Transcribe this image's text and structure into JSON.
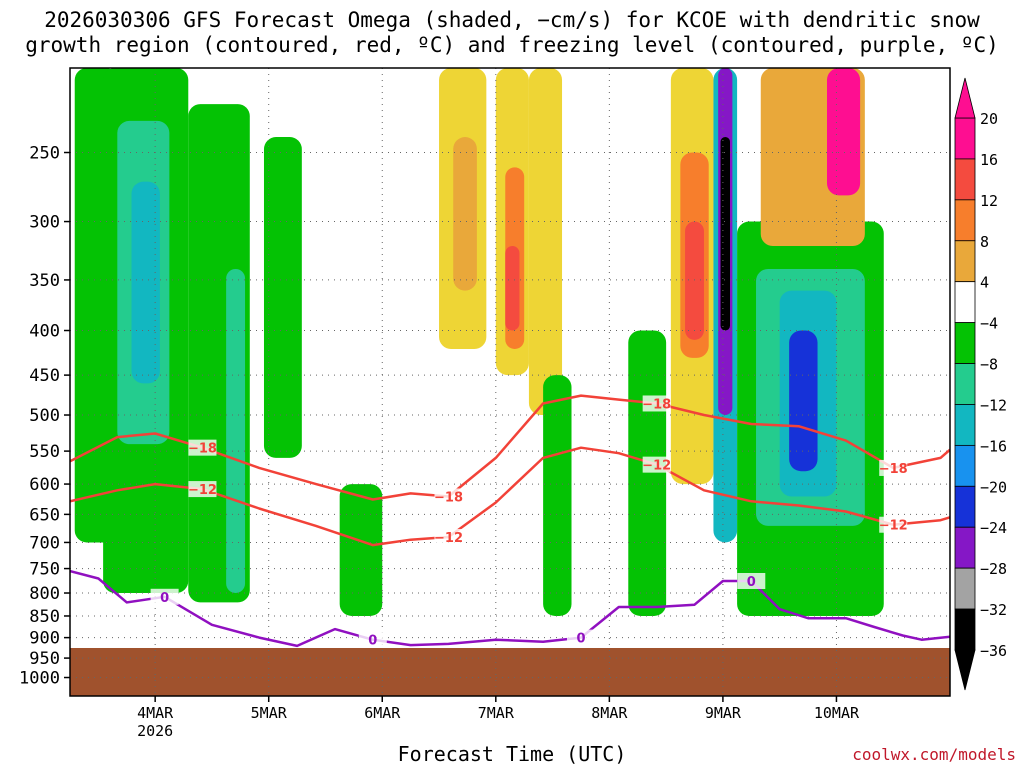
{
  "chart_data": {
    "type": "heatmap",
    "title_line1": "2026030306 GFS Forecast Omega (shaded, −cm/s) for KCOE with dendritic snow",
    "title_line2": "growth region (contoured, red, ºC) and freezing level (contoured, purple, ºC)",
    "xlabel": "Forecast Time (UTC)",
    "ylabel": "Pressure (hPa)",
    "credit": "coolwx.com/models",
    "x_range_hours": [
      0,
      186
    ],
    "x_ticks": [
      {
        "label": "4MAR",
        "sublabel": "2026",
        "hour": 18
      },
      {
        "label": "5MAR",
        "sublabel": "",
        "hour": 42
      },
      {
        "label": "6MAR",
        "sublabel": "",
        "hour": 66
      },
      {
        "label": "7MAR",
        "sublabel": "",
        "hour": 90
      },
      {
        "label": "8MAR",
        "sublabel": "",
        "hour": 114
      },
      {
        "label": "9MAR",
        "sublabel": "",
        "hour": 138
      },
      {
        "label": "10MAR",
        "sublabel": "",
        "hour": 162
      }
    ],
    "y_range_hpa": [
      200,
      1050
    ],
    "y_ticks": [
      250,
      300,
      350,
      400,
      450,
      500,
      550,
      600,
      650,
      700,
      750,
      800,
      850,
      900,
      950,
      1000
    ],
    "surface_pressure_hpa": 925,
    "colorbar": {
      "labels": [
        "20",
        "16",
        "12",
        "8",
        "4",
        "−4",
        "−8",
        "−12",
        "−16",
        "−20",
        "−24",
        "−28",
        "−32",
        "−36"
      ],
      "colors": [
        "#fe0e91",
        "#f44b3f",
        "#f77e2c",
        "#e9a83a",
        "#eed535",
        "#ffffff",
        "#04c204",
        "#24cc8e",
        "#12b7c1",
        "#1892ef",
        "#1632d8",
        "#8517c6",
        "#a3a3a3",
        "#000000"
      ]
    },
    "omega_regions": [
      {
        "hour_start": 1,
        "hour_end": 10,
        "p_top": 200,
        "p_bottom": 700,
        "value": -8
      },
      {
        "hour_start": 7,
        "hour_end": 25,
        "p_top": 200,
        "p_bottom": 800,
        "value": -8
      },
      {
        "hour_start": 10,
        "hour_end": 21,
        "p_top": 230,
        "p_bottom": 540,
        "value": -12
      },
      {
        "hour_start": 13,
        "hour_end": 19,
        "p_top": 270,
        "p_bottom": 460,
        "value": -16
      },
      {
        "hour_start": 25,
        "hour_end": 38,
        "p_top": 220,
        "p_bottom": 820,
        "value": -8
      },
      {
        "hour_start": 33,
        "hour_end": 37,
        "p_top": 340,
        "p_bottom": 800,
        "value": -12
      },
      {
        "hour_start": 41,
        "hour_end": 49,
        "p_top": 240,
        "p_bottom": 560,
        "value": -8
      },
      {
        "hour_start": 57,
        "hour_end": 66,
        "p_top": 600,
        "p_bottom": 850,
        "value": -8
      },
      {
        "hour_start": 78,
        "hour_end": 88,
        "p_top": 200,
        "p_bottom": 420,
        "value": 4
      },
      {
        "hour_start": 81,
        "hour_end": 86,
        "p_top": 240,
        "p_bottom": 360,
        "value": 8
      },
      {
        "hour_start": 90,
        "hour_end": 97,
        "p_top": 200,
        "p_bottom": 450,
        "value": 4
      },
      {
        "hour_start": 92,
        "hour_end": 96,
        "p_top": 260,
        "p_bottom": 420,
        "value": 12
      },
      {
        "hour_start": 92,
        "hour_end": 95,
        "p_top": 320,
        "p_bottom": 400,
        "value": 16
      },
      {
        "hour_start": 97,
        "hour_end": 104,
        "p_top": 200,
        "p_bottom": 500,
        "value": 4
      },
      {
        "hour_start": 100,
        "hour_end": 106,
        "p_top": 450,
        "p_bottom": 850,
        "value": -8
      },
      {
        "hour_start": 118,
        "hour_end": 126,
        "p_top": 400,
        "p_bottom": 850,
        "value": -8
      },
      {
        "hour_start": 127,
        "hour_end": 136,
        "p_top": 200,
        "p_bottom": 600,
        "value": 4
      },
      {
        "hour_start": 129,
        "hour_end": 135,
        "p_top": 250,
        "p_bottom": 430,
        "value": 12
      },
      {
        "hour_start": 130,
        "hour_end": 134,
        "p_top": 300,
        "p_bottom": 410,
        "value": 16
      },
      {
        "hour_start": 136,
        "hour_end": 141,
        "p_top": 200,
        "p_bottom": 700,
        "value": -16
      },
      {
        "hour_start": 137,
        "hour_end": 140,
        "p_top": 200,
        "p_bottom": 500,
        "value": -28
      },
      {
        "hour_start": 137.5,
        "hour_end": 139.5,
        "p_top": 240,
        "p_bottom": 400,
        "value": -36
      },
      {
        "hour_start": 141,
        "hour_end": 172,
        "p_top": 300,
        "p_bottom": 850,
        "value": -8
      },
      {
        "hour_start": 145,
        "hour_end": 168,
        "p_top": 340,
        "p_bottom": 670,
        "value": -12
      },
      {
        "hour_start": 150,
        "hour_end": 162,
        "p_top": 360,
        "p_bottom": 620,
        "value": -16
      },
      {
        "hour_start": 152,
        "hour_end": 158,
        "p_top": 400,
        "p_bottom": 580,
        "value": -24
      },
      {
        "hour_start": 146,
        "hour_end": 168,
        "p_top": 200,
        "p_bottom": 320,
        "value": 8
      },
      {
        "hour_start": 160,
        "hour_end": 167,
        "p_top": 200,
        "p_bottom": 280,
        "value": 20
      }
    ],
    "contours": [
      {
        "name": "-12C isotherm",
        "color": "#f24238",
        "label": "−12",
        "hours": [
          0,
          10,
          18,
          28,
          40,
          52,
          64,
          72,
          80,
          90,
          100,
          108,
          116,
          124,
          134,
          144,
          154,
          164,
          174,
          184,
          186
        ],
        "pressures": [
          628,
          610,
          600,
          608,
          640,
          670,
          705,
          695,
          690,
          630,
          560,
          545,
          553,
          570,
          610,
          628,
          635,
          645,
          668,
          660,
          655
        ]
      },
      {
        "name": "-18C isotherm",
        "color": "#f24238",
        "label": "−18",
        "hours": [
          0,
          10,
          18,
          28,
          40,
          52,
          64,
          72,
          80,
          90,
          100,
          108,
          116,
          124,
          134,
          144,
          154,
          164,
          174,
          184,
          186
        ],
        "pressures": [
          565,
          530,
          525,
          545,
          575,
          600,
          625,
          615,
          620,
          560,
          485,
          475,
          480,
          485,
          500,
          512,
          515,
          535,
          575,
          560,
          548
        ]
      },
      {
        "name": "0C freezing level",
        "color": "#9010c0",
        "label": "0",
        "hours": [
          0,
          6,
          12,
          20,
          30,
          40,
          48,
          56,
          64,
          72,
          80,
          90,
          100,
          108,
          116,
          124,
          132,
          138,
          144,
          150,
          156,
          164,
          170,
          176,
          180,
          186
        ],
        "pressures": [
          755,
          770,
          820,
          808,
          870,
          900,
          920,
          880,
          905,
          918,
          915,
          905,
          910,
          900,
          830,
          830,
          825,
          775,
          775,
          835,
          855,
          855,
          875,
          895,
          905,
          898
        ]
      }
    ]
  }
}
